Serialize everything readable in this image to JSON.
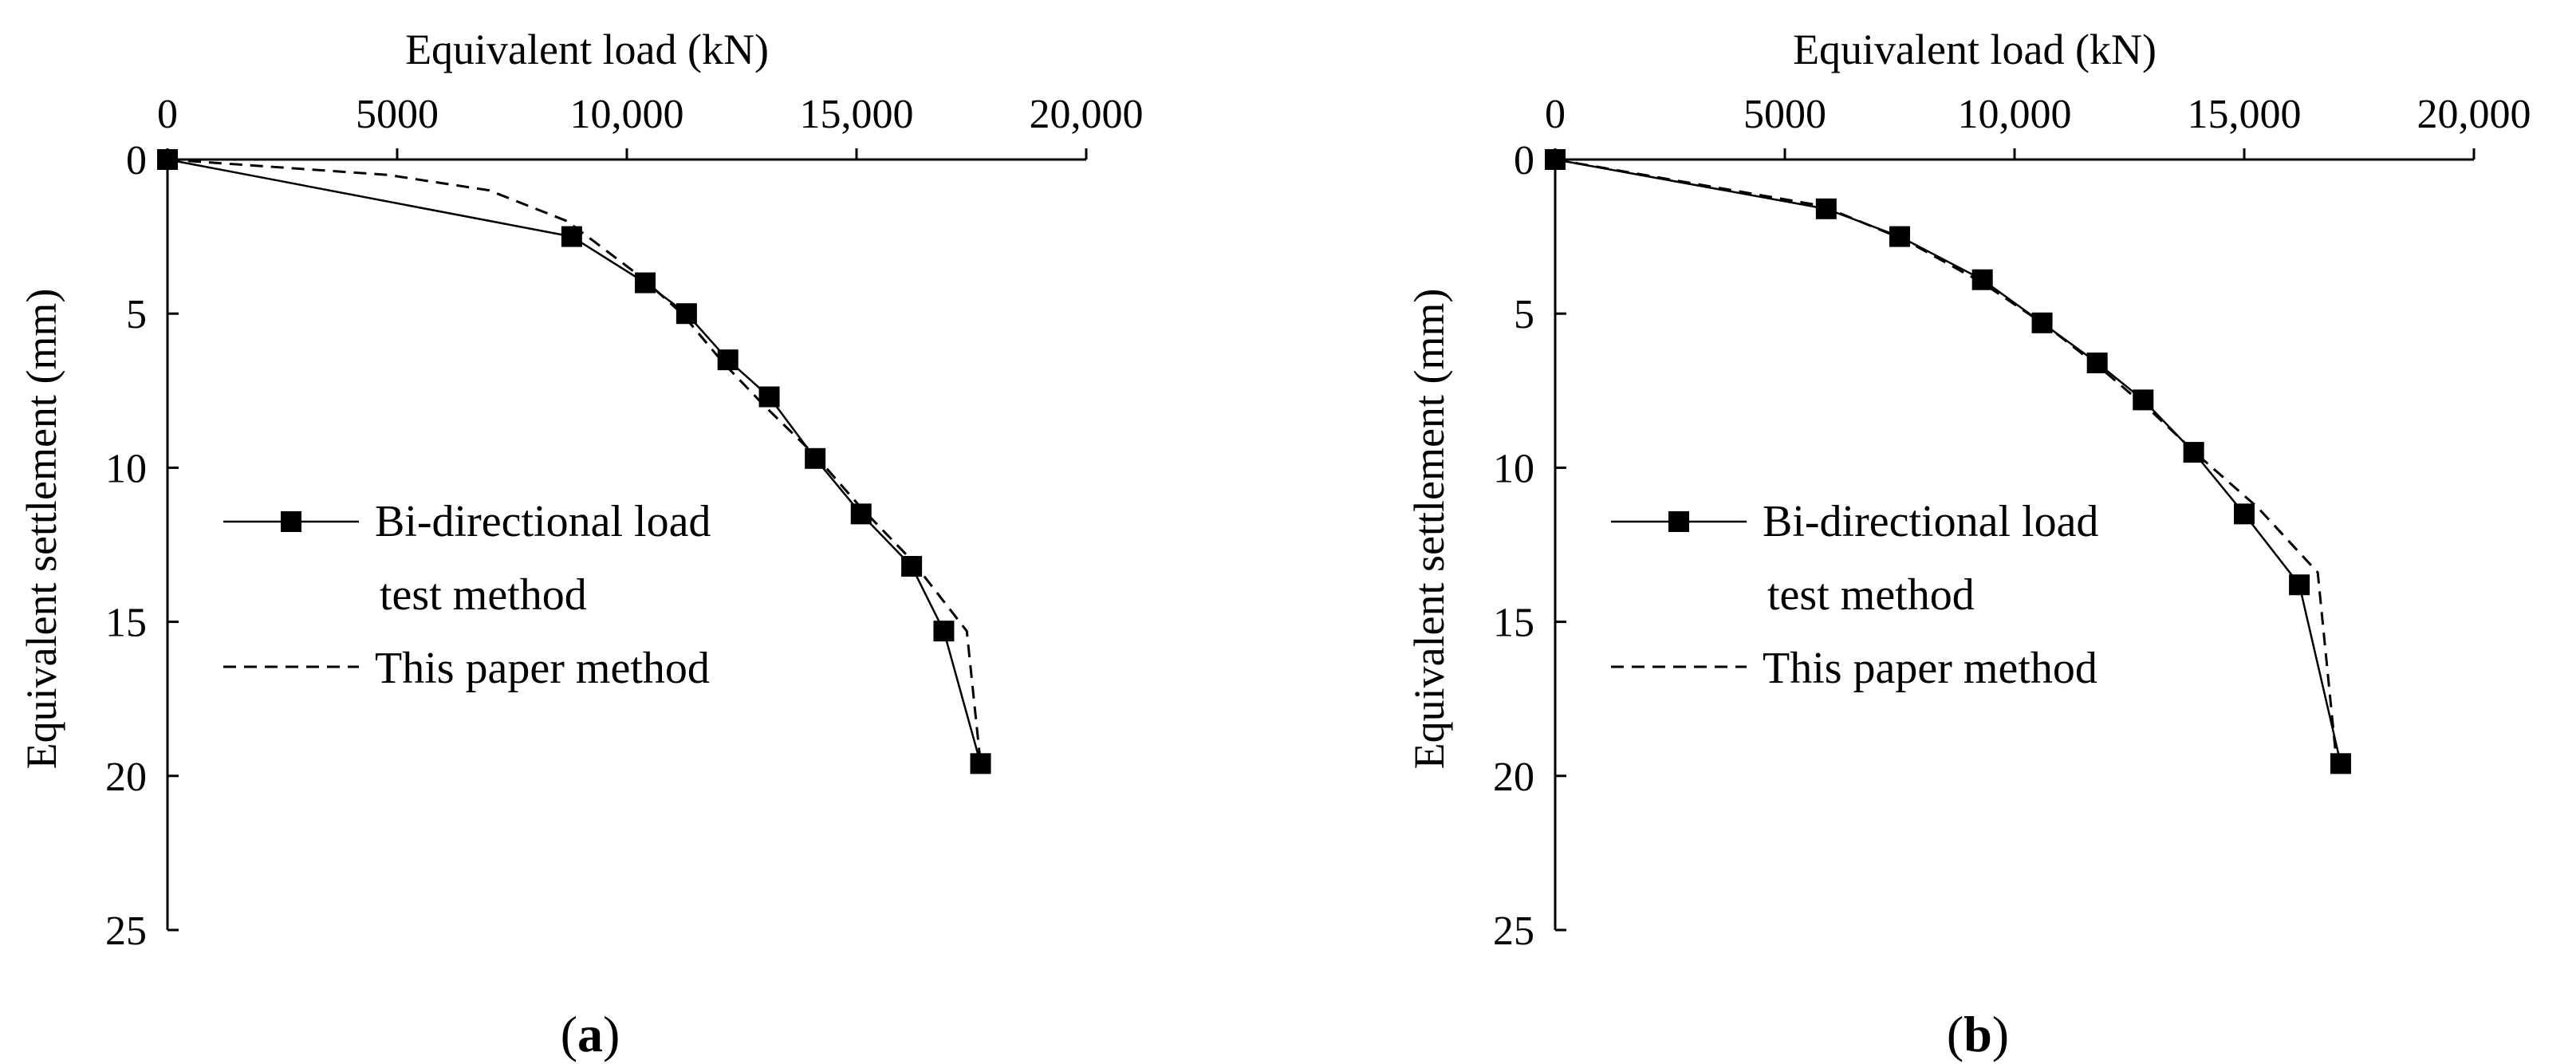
{
  "chart_data": [
    {
      "type": "line",
      "panel": "a",
      "caption_open": "(",
      "caption_letter": "a",
      "caption_close": ")",
      "xlabel": "Equivalent load (kN)",
      "ylabel": "Equivalent settlement (mm)",
      "xlim": [
        0,
        20000
      ],
      "ylim": [
        0,
        25
      ],
      "x_axis_position": "top",
      "y_inverted": true,
      "x_ticks": [
        0,
        5000,
        10000,
        15000,
        20000
      ],
      "x_tick_labels": [
        "0",
        "5000",
        "10,000",
        "15,000",
        "20,000"
      ],
      "y_ticks": [
        0,
        5,
        10,
        15,
        20,
        25
      ],
      "y_tick_labels": [
        "0",
        "5",
        "10",
        "15",
        "20",
        "25"
      ],
      "grid": false,
      "legend_position": "left-middle",
      "series": [
        {
          "name": "Bi-directional load test method",
          "legend_line1": "Bi-directional load",
          "legend_line2": "test method",
          "style": "solid-square",
          "points": [
            [
              0,
              0
            ],
            [
              8800,
              2.5
            ],
            [
              10400,
              4.0
            ],
            [
              11300,
              5.0
            ],
            [
              12200,
              6.5
            ],
            [
              13100,
              7.7
            ],
            [
              14100,
              9.7
            ],
            [
              15100,
              11.5
            ],
            [
              16200,
              13.2
            ],
            [
              16900,
              15.3
            ],
            [
              17700,
              19.6
            ]
          ]
        },
        {
          "name": "This paper method",
          "legend_line1": "This paper method",
          "style": "dashed",
          "points": [
            [
              0,
              0
            ],
            [
              4800,
              0.5
            ],
            [
              7000,
              1.0
            ],
            [
              8700,
              2.0
            ],
            [
              10300,
              3.8
            ],
            [
              11200,
              5.0
            ],
            [
              12100,
              6.6
            ],
            [
              13000,
              8.0
            ],
            [
              14100,
              9.6
            ],
            [
              15100,
              11.3
            ],
            [
              16200,
              13.0
            ],
            [
              17400,
              15.3
            ],
            [
              17700,
              19.6
            ]
          ]
        }
      ]
    },
    {
      "type": "line",
      "panel": "b",
      "caption_open": "(",
      "caption_letter": "b",
      "caption_close": ")",
      "xlabel": "Equivalent load (kN)",
      "ylabel": "Equivalent settlement (mm)",
      "xlim": [
        0,
        20000
      ],
      "ylim": [
        0,
        25
      ],
      "x_axis_position": "top",
      "y_inverted": true,
      "x_ticks": [
        0,
        5000,
        10000,
        15000,
        20000
      ],
      "x_tick_labels": [
        "0",
        "5000",
        "10,000",
        "15,000",
        "20,000"
      ],
      "y_ticks": [
        0,
        5,
        10,
        15,
        20,
        25
      ],
      "y_tick_labels": [
        "0",
        "5",
        "10",
        "15",
        "20",
        "25"
      ],
      "grid": false,
      "legend_position": "left-middle",
      "series": [
        {
          "name": "Bi-directional load test method",
          "legend_line1": "Bi-directional load",
          "legend_line2": "test method",
          "style": "solid-square",
          "points": [
            [
              0,
              0
            ],
            [
              5900,
              1.6
            ],
            [
              7500,
              2.5
            ],
            [
              9300,
              3.9
            ],
            [
              10600,
              5.3
            ],
            [
              11800,
              6.6
            ],
            [
              12800,
              7.8
            ],
            [
              13900,
              9.5
            ],
            [
              15000,
              11.5
            ],
            [
              16200,
              13.8
            ],
            [
              17100,
              19.6
            ]
          ]
        },
        {
          "name": "This paper method",
          "legend_line1": "This paper method",
          "style": "dashed",
          "points": [
            [
              0,
              0
            ],
            [
              5800,
              1.5
            ],
            [
              7600,
              2.6
            ],
            [
              9300,
              4.0
            ],
            [
              10700,
              5.4
            ],
            [
              11900,
              6.8
            ],
            [
              13000,
              8.2
            ],
            [
              14000,
              9.6
            ],
            [
              15300,
              11.3
            ],
            [
              16600,
              13.4
            ],
            [
              17000,
              19.4
            ]
          ]
        }
      ]
    }
  ]
}
